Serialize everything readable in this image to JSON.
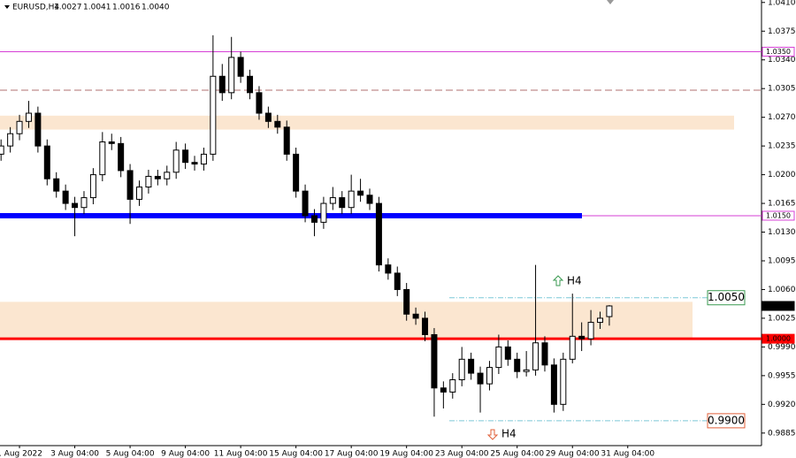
{
  "chart_data": {
    "type": "candlestick",
    "title": "EURUSD,H4",
    "header_values": [
      "1.0027",
      "1.0041",
      "1.0016",
      "1.0040"
    ],
    "categories": [
      null,
      null,
      "1 Aug 2022",
      null,
      null,
      null,
      null,
      null,
      "3 Aug 04:00",
      null,
      null,
      null,
      null,
      null,
      "5 Aug 04:00",
      null,
      null,
      null,
      null,
      null,
      "9 Aug 04:00",
      null,
      null,
      null,
      null,
      null,
      "11 Aug 04:00",
      null,
      null,
      null,
      null,
      null,
      "15 Aug 04:00",
      null,
      null,
      null,
      null,
      null,
      "17 Aug 04:00",
      null,
      null,
      null,
      null,
      null,
      "19 Aug 04:00",
      null,
      null,
      null,
      null,
      null,
      "23 Aug 04:00",
      null,
      null,
      null,
      null,
      null,
      "25 Aug 04:00",
      null,
      null,
      null,
      null,
      null,
      "29 Aug 04:00",
      null,
      null,
      null,
      null,
      null,
      "31 Aug 04:00"
    ],
    "open": [
      1.0225,
      1.0235,
      1.025,
      1.0265,
      1.0275,
      1.0235,
      1.0195,
      1.018,
      1.0165,
      1.016,
      1.0172,
      1.02,
      1.024,
      1.0238,
      1.0205,
      1.017,
      1.0185,
      1.0198,
      1.0195,
      1.0203,
      1.023,
      1.0215,
      1.0213,
      1.0225,
      1.032,
      1.03,
      1.0343,
      1.032,
      1.03,
      1.0275,
      1.0265,
      1.0258,
      1.0225,
      1.018,
      1.015,
      1.0142,
      1.0165,
      1.0172,
      1.016,
      1.018,
      1.0175,
      1.0165,
      1.009,
      1.008,
      1.006,
      1.003,
      1.0025,
      1.0005,
      0.994,
      0.9935,
      0.995,
      0.9975,
      0.9958,
      0.9945,
      0.9965,
      0.999,
      0.9975,
      0.996,
      0.9962,
      0.9995,
      0.9968,
      0.992,
      0.9975,
      1.0003,
      1.0,
      1.002,
      1.0027,
      null,
      null
    ],
    "high": [
      1.0243,
      1.0258,
      1.0273,
      1.029,
      1.0283,
      1.0243,
      1.0203,
      1.0188,
      1.0173,
      1.018,
      1.0208,
      1.0252,
      1.025,
      1.0246,
      1.0213,
      1.0193,
      1.0206,
      1.0206,
      1.0211,
      1.024,
      1.0238,
      1.0223,
      1.0233,
      1.037,
      1.0335,
      1.0368,
      1.035,
      1.0328,
      1.0308,
      1.0283,
      1.0273,
      1.0266,
      1.0233,
      1.0188,
      1.0158,
      1.0173,
      1.0185,
      1.018,
      1.02,
      1.0195,
      1.0183,
      1.0173,
      1.0098,
      1.0088,
      1.0068,
      1.0038,
      1.0033,
      1.0013,
      0.9948,
      0.9958,
      0.999,
      0.9983,
      0.9966,
      0.9973,
      1.0005,
      0.9998,
      0.9983,
      0.9985,
      1.009,
      1.0003,
      0.9976,
      0.9983,
      1.0055,
      1.002,
      1.0035,
      1.0033,
      1.0041,
      null,
      null
    ],
    "low": [
      1.0217,
      1.0227,
      1.0242,
      1.0257,
      1.0227,
      1.0187,
      1.0172,
      1.0157,
      1.0125,
      1.0152,
      1.0164,
      1.0192,
      1.023,
      1.0197,
      1.014,
      1.0162,
      1.0177,
      1.0187,
      1.0187,
      1.0195,
      1.0207,
      1.0205,
      1.0205,
      1.0217,
      1.029,
      1.0292,
      1.0312,
      1.0292,
      1.0267,
      1.0257,
      1.025,
      1.0217,
      1.0172,
      1.0142,
      1.0125,
      1.0134,
      1.0157,
      1.0152,
      1.0152,
      1.0167,
      1.0157,
      1.0082,
      1.0072,
      1.0052,
      1.0022,
      1.0017,
      0.9997,
      0.9905,
      0.9915,
      0.9927,
      0.9942,
      0.995,
      0.991,
      0.9937,
      0.9957,
      0.9967,
      0.9952,
      0.9954,
      0.9955,
      0.996,
      0.991,
      0.9912,
      0.997,
      0.9985,
      0.9992,
      1.0012,
      1.0016,
      null,
      null
    ],
    "close": [
      1.0235,
      1.025,
      1.0265,
      1.0275,
      1.0235,
      1.0195,
      1.018,
      1.0165,
      1.016,
      1.0172,
      1.02,
      1.024,
      1.0238,
      1.0205,
      1.017,
      1.0185,
      1.0198,
      1.0195,
      1.0203,
      1.023,
      1.0215,
      1.0213,
      1.0225,
      1.032,
      1.03,
      1.0343,
      1.032,
      1.03,
      1.0275,
      1.0265,
      1.0258,
      1.0225,
      1.018,
      1.015,
      1.0142,
      1.0165,
      1.0172,
      1.016,
      1.018,
      1.0175,
      1.0165,
      1.009,
      1.008,
      1.006,
      1.003,
      1.0025,
      1.0005,
      0.994,
      0.9935,
      0.995,
      0.9975,
      0.9958,
      0.9945,
      0.9965,
      0.999,
      0.9975,
      0.996,
      0.9962,
      0.9995,
      0.9968,
      0.992,
      0.9975,
      1.0003,
      1.0,
      1.002,
      1.0025,
      1.004,
      null,
      null
    ],
    "ylim": [
      0.9874,
      1.0413
    ],
    "yticks": [
      {
        "value": 1.041,
        "label": "1.0410"
      },
      {
        "value": 1.0375,
        "label": "1.0375"
      },
      {
        "value": 1.034,
        "label": "1.0340"
      },
      {
        "value": 1.0305,
        "label": "1.0305"
      },
      {
        "value": 1.027,
        "label": "1.0270"
      },
      {
        "value": 1.0235,
        "label": "1.0235"
      },
      {
        "value": 1.02,
        "label": "1.0200"
      },
      {
        "value": 1.0165,
        "label": "1.0165"
      },
      {
        "value": 1.013,
        "label": "1.0130"
      },
      {
        "value": 1.0095,
        "label": "1.0095"
      },
      {
        "value": 1.006,
        "label": "1.0060"
      },
      {
        "value": 1.0025,
        "label": "1.0025"
      },
      {
        "value": 0.999,
        "label": "0.9990"
      },
      {
        "value": 0.9955,
        "label": "0.9955"
      },
      {
        "value": 0.992,
        "label": "0.9920"
      },
      {
        "value": 0.9885,
        "label": "0.9885"
      }
    ],
    "zones": [
      {
        "from": 1.0255,
        "to": 1.0272,
        "color": "#fbe6d0"
      },
      {
        "from": 1.0,
        "to": 1.0045,
        "color": "#fbe6d0"
      }
    ],
    "levels": [
      {
        "value": 1.035,
        "label": "1.0350",
        "color": "#d63fd6",
        "style": "solid"
      },
      {
        "value": 1.0303,
        "color": "#b07070",
        "style": "dashed"
      },
      {
        "value": 1.015,
        "label": "1.0150",
        "color": "#d63fd6",
        "style": "solid"
      },
      {
        "value": 1.004,
        "label": "1.0040",
        "color": "#000000",
        "style": "marker"
      },
      {
        "value": 1.0,
        "label": "1.0000",
        "color": "#ff0000",
        "style": "thick"
      }
    ],
    "support_band": {
      "value": 1.015,
      "color": "#0000ff"
    },
    "targets": [
      {
        "value": 1.005,
        "label": "1.0050",
        "color": "#3a9a50",
        "arrow": "up",
        "note": "H4"
      },
      {
        "value": 0.99,
        "label": "0.9900",
        "color": "#e0603a",
        "arrow": "down",
        "note": "H4"
      }
    ]
  }
}
